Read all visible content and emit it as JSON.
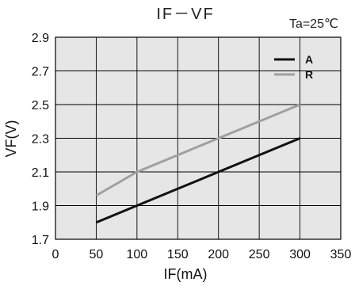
{
  "chart_data": {
    "type": "line",
    "title": "IF－VF",
    "annotation": "Ta=25℃",
    "xlabel": "IF(mA)",
    "ylabel": "VF(V)",
    "xlim": [
      0,
      350
    ],
    "ylim": [
      1.7,
      2.9
    ],
    "x_ticks": [
      "0",
      "50",
      "100",
      "150",
      "200",
      "250",
      "300",
      "350"
    ],
    "y_ticks": [
      "1.7",
      "1.9",
      "2.1",
      "2.3",
      "2.5",
      "2.7",
      "2.9"
    ],
    "grid": true,
    "legend_position": "top-right",
    "colors": {
      "plot_background": "#e6e6e6",
      "grid": "#000000",
      "series_A": "#111111",
      "series_R": "#a0a0a0"
    },
    "series": [
      {
        "name": "A",
        "x": [
          50,
          100,
          150,
          200,
          250,
          300
        ],
        "y": [
          1.8,
          1.9,
          2.0,
          2.1,
          2.2,
          2.3
        ]
      },
      {
        "name": "R",
        "x": [
          50,
          100,
          125,
          150,
          200,
          250,
          300
        ],
        "y": [
          1.96,
          2.1,
          2.15,
          2.2,
          2.3,
          2.4,
          2.5
        ]
      }
    ]
  }
}
